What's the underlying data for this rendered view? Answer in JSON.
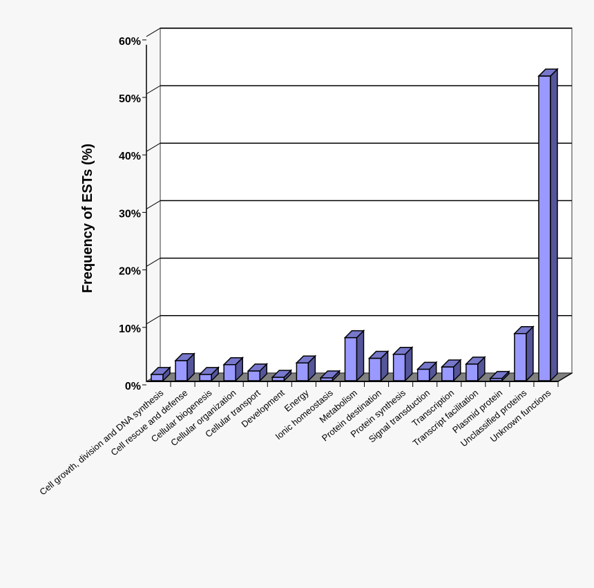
{
  "chart_data": {
    "type": "bar",
    "style": "3d",
    "title": "",
    "xlabel": "",
    "ylabel": "Frequency of ESTs (%)",
    "ylim": [
      0,
      60
    ],
    "yticks": [
      "0%",
      "10%",
      "20%",
      "30%",
      "40%",
      "50%",
      "60%"
    ],
    "grid": true,
    "categories": [
      "Cell growth, division and DNA synthesis",
      "Cell rescue and defense",
      "Cellular biogenesis",
      "Cellular organization",
      "Cellular transport",
      "Development",
      "Energy",
      "Ionic homeostasis",
      "Metabolism",
      "Protein destination",
      "Protein synthesis",
      "Signal transduction",
      "Transcription",
      "Transcript facilitation",
      "Plasmid protein",
      "Unclassified proteins",
      "Unknown functions"
    ],
    "values": [
      1.1,
      3.5,
      1.1,
      2.8,
      1.7,
      0.6,
      3.1,
      0.5,
      7.5,
      3.9,
      4.6,
      2.0,
      2.4,
      2.9,
      0.4,
      8.2,
      53
    ],
    "colors": {
      "bar_front": "#9999ff",
      "bar_side": "#55559a",
      "bar_top": "#7777cc",
      "floor": "#808080"
    }
  }
}
